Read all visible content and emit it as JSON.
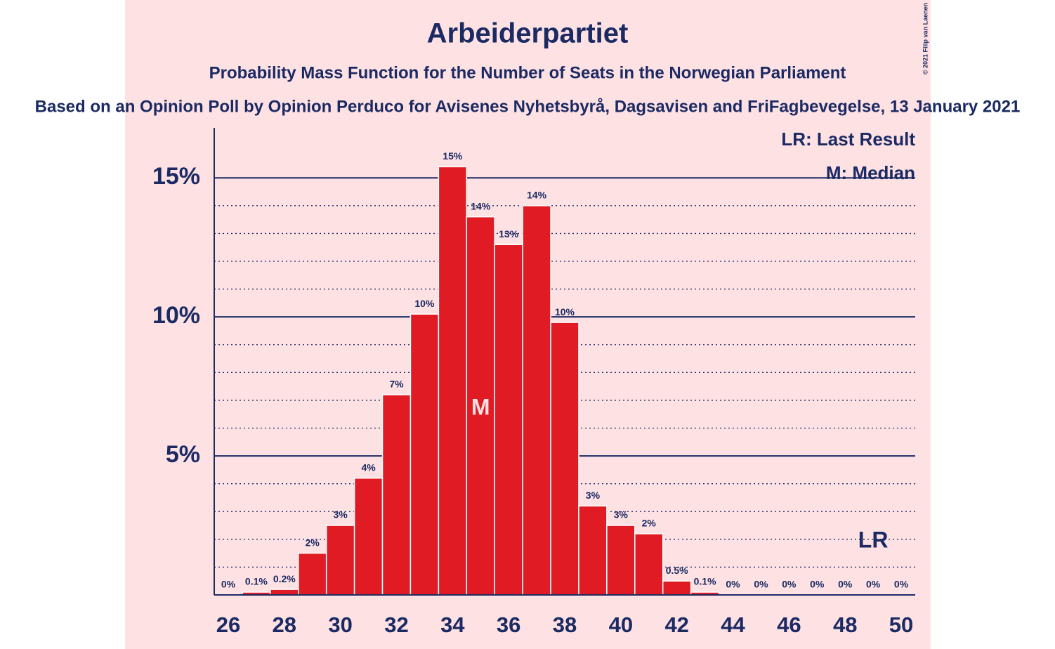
{
  "chart_data": {
    "type": "bar",
    "title": "Arbeiderpartiet",
    "subtitle": "Probability Mass Function for the Number of Seats in the Norwegian Parliament",
    "source": "Based on an Opinion Poll by Opinion Perduco for Avisenes Nyhetsbyrå, Dagsavisen and FriFagbevegelse, 13 January 2021",
    "copyright": "© 2021 Filip van Laenen",
    "legend": [
      "LR: Last Result",
      "M: Median"
    ],
    "x": [
      26,
      27,
      28,
      29,
      30,
      31,
      32,
      33,
      34,
      35,
      36,
      37,
      38,
      39,
      40,
      41,
      42,
      43,
      44,
      45,
      46,
      47,
      48,
      49,
      50
    ],
    "values": [
      0,
      0.1,
      0.2,
      1.5,
      2.5,
      4.2,
      7.2,
      10.1,
      15.4,
      13.6,
      12.6,
      14.0,
      9.8,
      3.2,
      2.5,
      2.2,
      0.5,
      0.1,
      0,
      0,
      0,
      0,
      0,
      0,
      0
    ],
    "value_labels": [
      "0%",
      "0.1%",
      "0.2%",
      "2%",
      "3%",
      "4%",
      "7%",
      "10%",
      "15%",
      "14%",
      "13%",
      "14%",
      "10%",
      "3%",
      "3%",
      "2%",
      "0.5%",
      "0.1%",
      "0%",
      "0%",
      "0%",
      "0%",
      "0%",
      "0%",
      "0%"
    ],
    "color": "#e01b24",
    "xlim": [
      25.5,
      50.5
    ],
    "xticks": [
      26,
      28,
      30,
      32,
      34,
      36,
      38,
      40,
      42,
      44,
      46,
      48,
      50
    ],
    "ylim": [
      0,
      16.8
    ],
    "yticks": [
      {
        "value": 5,
        "label": "5%"
      },
      {
        "value": 10,
        "label": "10%"
      },
      {
        "value": 15,
        "label": "15%"
      }
    ],
    "minor_yticks": [
      1,
      2,
      3,
      4,
      6,
      7,
      8,
      9,
      11,
      12,
      13,
      14
    ],
    "grid": true,
    "annotations": [
      {
        "text": "M",
        "x": 35
      },
      {
        "text": "LR",
        "x": 49
      }
    ]
  }
}
